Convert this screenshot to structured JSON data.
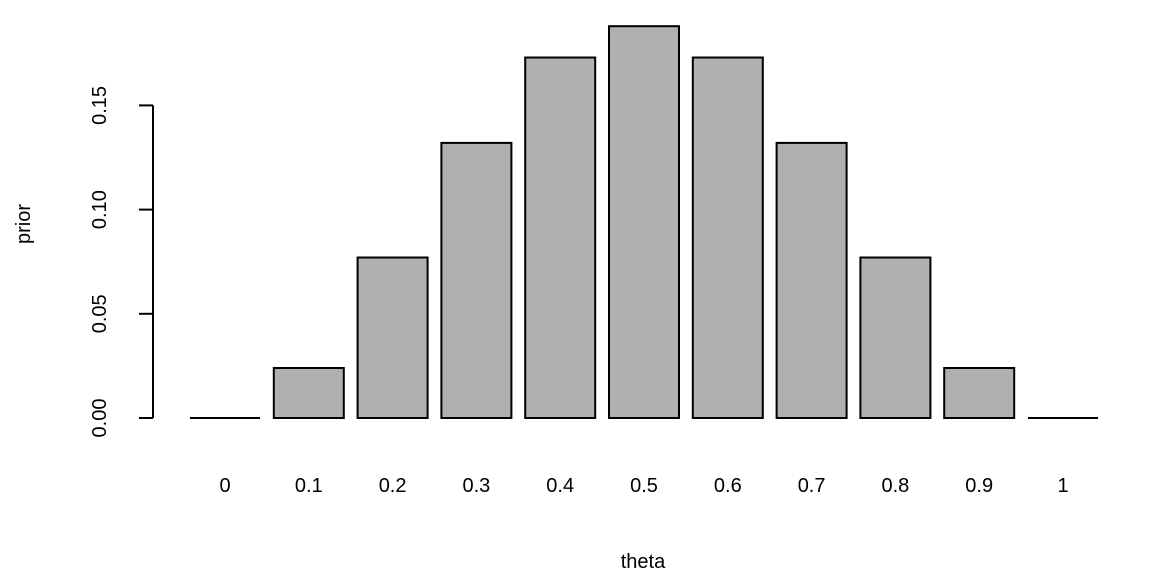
{
  "chart_data": {
    "type": "bar",
    "categories": [
      "0",
      "0.1",
      "0.2",
      "0.3",
      "0.4",
      "0.5",
      "0.6",
      "0.7",
      "0.8",
      "0.9",
      "1"
    ],
    "values": [
      0,
      0.024,
      0.077,
      0.132,
      0.173,
      0.188,
      0.173,
      0.132,
      0.077,
      0.024,
      0
    ],
    "xlabel": "theta",
    "ylabel": "prior",
    "y_ticks": [
      "0.00",
      "0.05",
      "0.10",
      "0.15"
    ],
    "ylim": [
      0,
      0.188
    ],
    "grid": false,
    "colors": {
      "bar_fill": "#b0b0b0",
      "bar_stroke": "#000000"
    }
  }
}
